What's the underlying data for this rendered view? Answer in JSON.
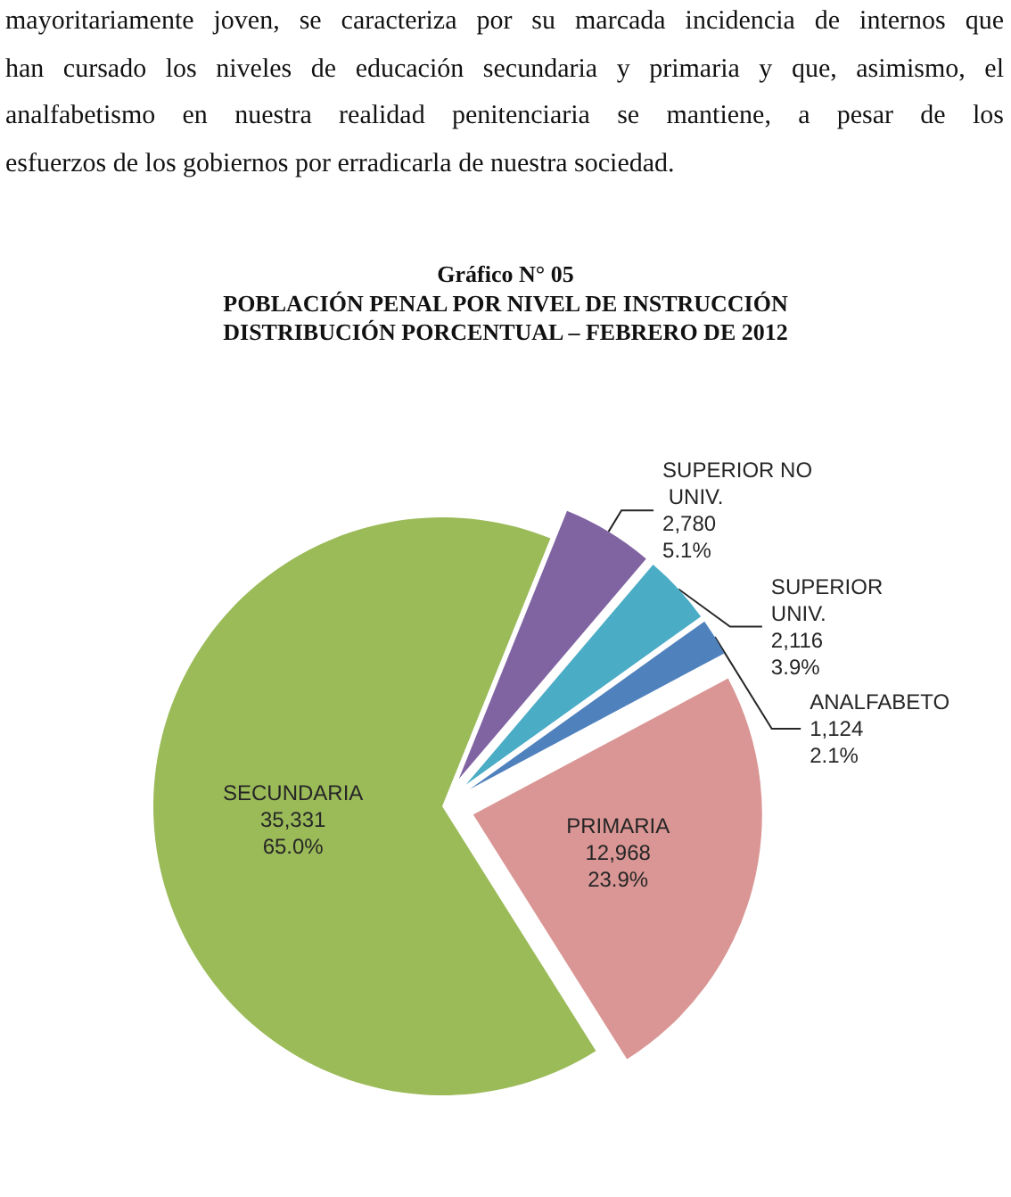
{
  "chart_data": {
    "type": "pie",
    "title": "Gráfico N° 05",
    "subtitle": "POBLACIÓN PENAL POR NIVEL DE INSTRUCCIÓN\nDISTRIBUCIÓN PORCENTUAL – FEBRERO DE 2012",
    "categories": [
      "SUPERIOR NO UNIV.",
      "SUPERIOR UNIV.",
      "ANALFABETO",
      "PRIMARIA",
      "SECUNDARIA"
    ],
    "values": [
      2780,
      2116,
      1124,
      12968,
      35331
    ],
    "colors": [
      "#8064a2",
      "#4bacc6",
      "#4f81bd",
      "#d99694",
      "#9bbb59"
    ],
    "value_labels": [
      "2,780\n5.1%",
      "2,116\n3.9%",
      "1,124\n2.1%",
      "12,968\n23.9%",
      "35,331\n65.0%"
    ],
    "annotations": [
      "mayoritariamente joven, se caracteriza por su marcada incidencia de internos que",
      "han cursado los niveles de educación secundaria y primaria y que, asimismo, el",
      "analfabetismo en nuestra realidad penitenciaria se mantiene,  a pesar de los",
      "esfuerzos de los gobiernos por erradicarla de nuestra sociedad."
    ]
  }
}
